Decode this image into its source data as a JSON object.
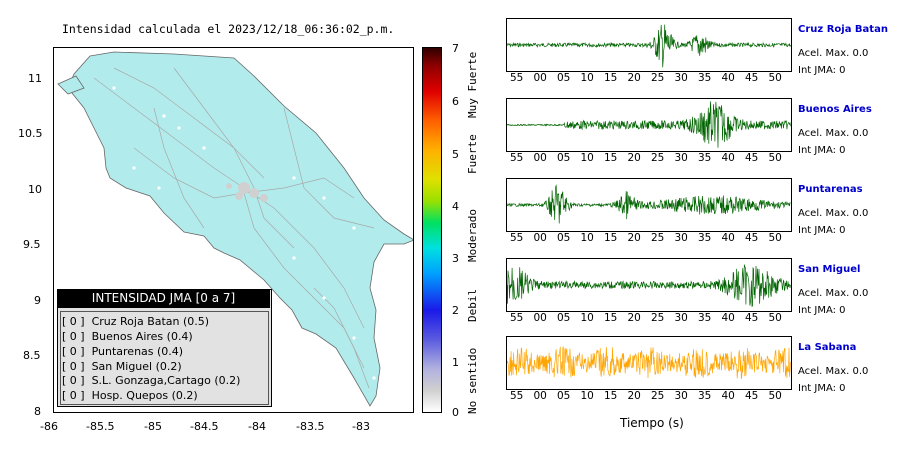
{
  "map": {
    "title": "Intensidad calculada el 2023/12/18_06:36:02_p.m.",
    "y_ticks": [
      "11",
      "10.5",
      "10",
      "9.5",
      "9",
      "8.5",
      "8"
    ],
    "x_ticks": [
      "-86",
      "-85.5",
      "-85",
      "-84.5",
      "-84",
      "-83.5",
      "-83"
    ],
    "land_color": "#b2ebec"
  },
  "legend": {
    "header": "INTENSIDAD JMA [0 a 7]",
    "items": [
      {
        "value": "[ 0 ]",
        "label": "Cruz Roja Batan (0.5)"
      },
      {
        "value": "[ 0 ]",
        "label": "Buenos Aires (0.4)"
      },
      {
        "value": "[ 0 ]",
        "label": "Puntarenas (0.4)"
      },
      {
        "value": "[ 0 ]",
        "label": "San Miguel (0.2)"
      },
      {
        "value": "[ 0 ]",
        "label": "S.L. Gonzaga,Cartago (0.2)"
      },
      {
        "value": "[ 0 ]",
        "label": "Hosp. Quepos (0.2)"
      }
    ]
  },
  "colorbar": {
    "ticks": [
      "7",
      "6",
      "5",
      "4",
      "3",
      "2",
      "1",
      "0"
    ],
    "words": [
      "Muy Fuerte",
      "Fuerte",
      "Moderado",
      "Debil",
      "No sentido"
    ]
  },
  "traces": {
    "time_ticks": [
      "55",
      "00",
      "05",
      "10",
      "15",
      "20",
      "25",
      "30",
      "35",
      "40",
      "45",
      "50"
    ],
    "xlabel": "Tiempo (s)",
    "stations": [
      {
        "name": "Cruz Roja Batan",
        "accel": "Acel. Max. 0.0",
        "int": "Int JMA: 0",
        "color": "#006400"
      },
      {
        "name": "Buenos Aires",
        "accel": "Acel. Max. 0.0",
        "int": "Int JMA: 0",
        "color": "#006400"
      },
      {
        "name": "Puntarenas",
        "accel": "Acel. Max. 0.0",
        "int": "Int JMA: 0",
        "color": "#006400"
      },
      {
        "name": "San Miguel",
        "accel": "Acel. Max. 0.0",
        "int": "Int JMA: 0",
        "color": "#006400"
      },
      {
        "name": "La Sabana",
        "accel": "Acel. Max. 0.0",
        "int": "Int JMA: 0",
        "color": "#ffa500"
      }
    ]
  }
}
